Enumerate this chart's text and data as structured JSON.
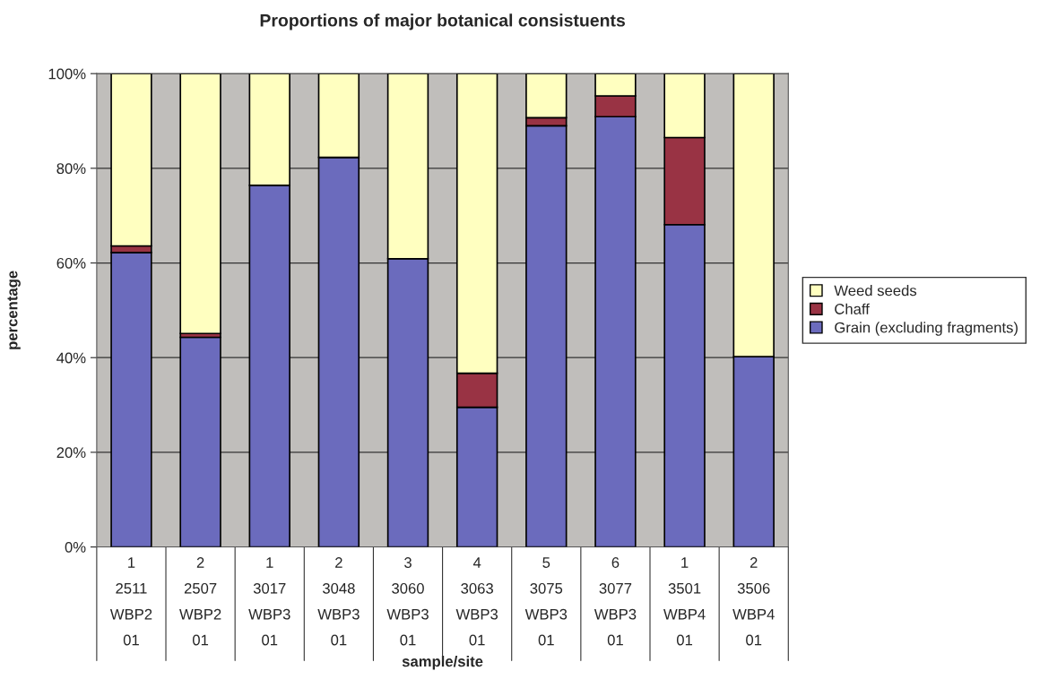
{
  "chart_data": {
    "type": "bar",
    "stacked": true,
    "title": "Proportions of major botanical consistuents",
    "xlabel": "sample/site",
    "ylabel": "percentage",
    "categories": [
      "1\n2511\nWBP2\n01",
      "2\n2507\nWBP2\n01",
      "1\n3017\nWBP3\n01",
      "2\n3048\nWBP3\n01",
      "3\n3060\nWBP3\n01",
      "4\n3063\nWBP3\n01",
      "5\n3075\nWBP3\n01",
      "6\n3077\nWBP3\n01",
      "1\n3501\nWBP4\n01",
      "2\n3506\nWBP4\n01"
    ],
    "series": [
      {
        "name": "Grain (excluding fragments)",
        "color": "#6b6bbd",
        "values": [
          62.2,
          44.3,
          76.4,
          82.3,
          60.9,
          29.5,
          89.0,
          90.9,
          68.1,
          40.2
        ]
      },
      {
        "name": "Chaff",
        "color": "#993344",
        "values": [
          1.4,
          0.8,
          0,
          0,
          0,
          7.2,
          1.7,
          4.4,
          18.4,
          0
        ]
      },
      {
        "name": "Weed seeds",
        "color": "#ffffc0",
        "values": [
          36.4,
          54.9,
          23.6,
          17.7,
          39.1,
          63.3,
          9.3,
          4.7,
          13.5,
          59.8
        ]
      }
    ],
    "ylim": [
      0,
      100
    ],
    "yticks": [
      {
        "value": 0,
        "label": "0%"
      },
      {
        "value": 20,
        "label": "20%"
      },
      {
        "value": 40,
        "label": "40%"
      },
      {
        "value": 60,
        "label": "60%"
      },
      {
        "value": 80,
        "label": "80%"
      },
      {
        "value": 100,
        "label": "100%"
      }
    ],
    "grid": "y",
    "legend": "right"
  }
}
